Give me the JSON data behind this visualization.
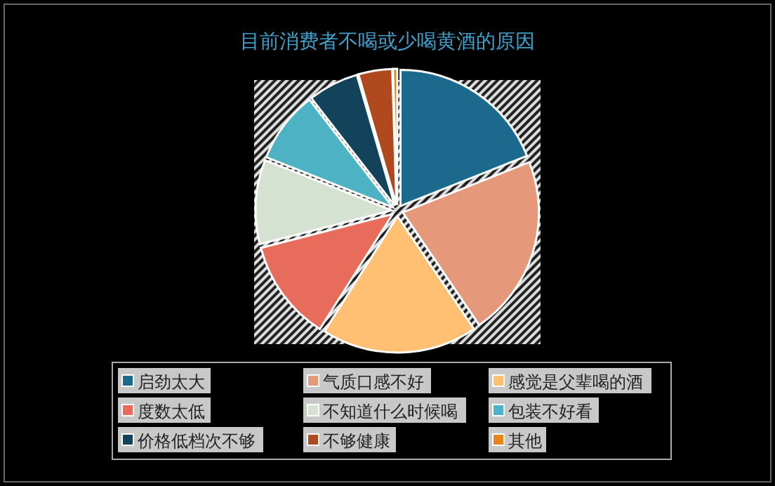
{
  "chart_data": {
    "type": "pie",
    "title": "目前消费者不喝或少喝黄酒的原因",
    "categories": [
      "启劲太大",
      "气质口感不好",
      "感觉是父辈喝的酒",
      "度数太低",
      "不知道什么时候喝",
      "包装不好看",
      "价格低档次不够",
      "不够健康",
      "其他"
    ],
    "values": [
      19,
      21.5,
      18.5,
      12,
      10,
      8.5,
      6,
      4,
      0.5
    ],
    "colors": [
      "#1b6a8e",
      "#e5997a",
      "#ffc073",
      "#e86c5c",
      "#d5e2d2",
      "#4db3c4",
      "#12435a",
      "#b04a1e",
      "#e8851a"
    ],
    "legend": "bottom"
  }
}
